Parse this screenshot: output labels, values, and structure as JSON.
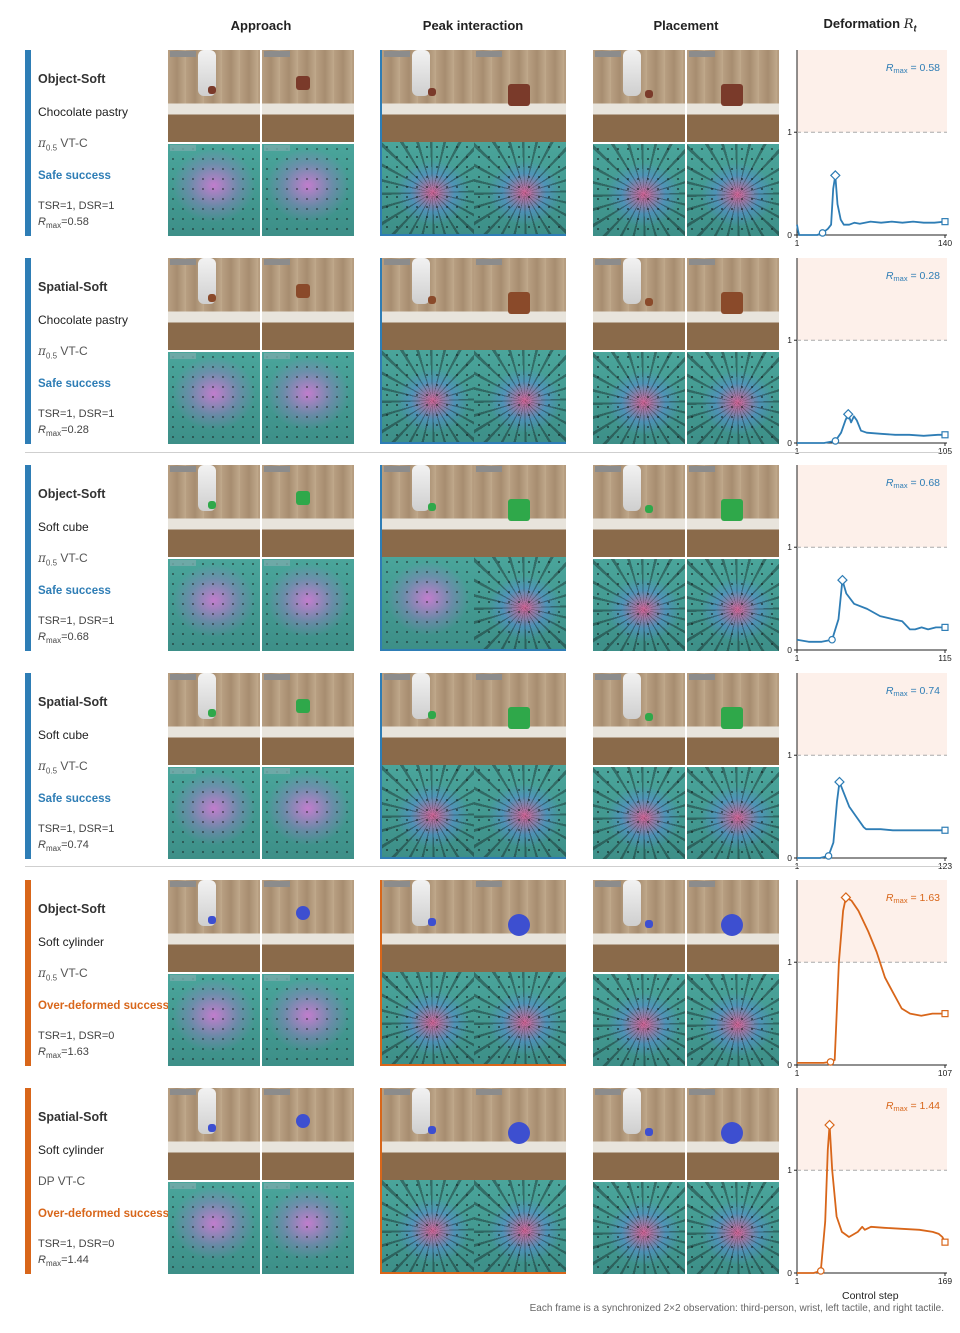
{
  "headers": {
    "approach": "Approach",
    "peak": "Peak interaction",
    "placement": "Placement",
    "deformation": "Deformation",
    "deformation_symbol": "R",
    "deformation_subscript": "t"
  },
  "colors": {
    "safe": "#2e7db5",
    "over": "#d8661a",
    "shade": "#fdf0ea",
    "threshold": "#aaaaaa"
  },
  "rows": [
    {
      "task": "Object-Soft",
      "object": "Chocolate pastry",
      "policy_base": "π",
      "policy_sub": "0.5",
      "policy_rest": " VT-C",
      "outcome": "Safe success",
      "outcome_type": "safe",
      "metrics": "TSR=1, DSR=1",
      "rmax_label": "R",
      "rmax_sub": "max",
      "rmax_value": "=0.58",
      "rmax_annot": "= 0.58"
    },
    {
      "task": "Spatial-Soft",
      "object": "Chocolate pastry",
      "policy_base": "π",
      "policy_sub": "0.5",
      "policy_rest": " VT-C",
      "outcome": "Safe success",
      "outcome_type": "safe",
      "metrics": "TSR=1, DSR=1",
      "rmax_label": "R",
      "rmax_sub": "max",
      "rmax_value": "=0.28",
      "rmax_annot": "= 0.28"
    },
    {
      "task": "Object-Soft",
      "object": "Soft cube",
      "policy_base": "π",
      "policy_sub": "0.5",
      "policy_rest": " VT-C",
      "outcome": "Safe success",
      "outcome_type": "safe",
      "metrics": "TSR=1, DSR=1",
      "rmax_label": "R",
      "rmax_sub": "max",
      "rmax_value": "=0.68",
      "rmax_annot": "= 0.68"
    },
    {
      "task": "Spatial-Soft",
      "object": "Soft cube",
      "policy_base": "π",
      "policy_sub": "0.5",
      "policy_rest": " VT-C",
      "outcome": "Safe success",
      "outcome_type": "safe",
      "metrics": "TSR=1, DSR=1",
      "rmax_label": "R",
      "rmax_sub": "max",
      "rmax_value": "=0.74",
      "rmax_annot": "= 0.74"
    },
    {
      "task": "Object-Soft",
      "object": "Soft cylinder",
      "policy_base": "π",
      "policy_sub": "0.5",
      "policy_rest": " VT-C",
      "outcome": "Over-deformed success",
      "outcome_type": "over",
      "metrics": "TSR=1, DSR=0",
      "rmax_label": "R",
      "rmax_sub": "max",
      "rmax_value": "=1.63",
      "rmax_annot": "= 1.63"
    },
    {
      "task": "Spatial-Soft",
      "object": "Soft cylinder",
      "policy_base": "DP VT-C",
      "policy_sub": "",
      "policy_rest": "",
      "outcome": "Over-deformed success",
      "outcome_type": "over",
      "metrics": "TSR=1, DSR=0",
      "rmax_label": "R",
      "rmax_sub": "max",
      "rmax_value": "=1.44",
      "rmax_annot": "= 1.44"
    }
  ],
  "chart_data": [
    {
      "type": "line",
      "x_start": 1,
      "x_end": 140,
      "ylim": [
        0,
        1.8
      ],
      "threshold": 1,
      "yticks": [
        0,
        1
      ],
      "xticks": [
        "1",
        "140"
      ],
      "series": [
        {
          "values": [
            [
              1,
              0.1
            ],
            [
              2,
              0.04
            ],
            [
              3,
              0
            ],
            [
              15,
              0
            ],
            [
              20,
              0
            ],
            [
              25,
              0.02
            ],
            [
              30,
              0.06
            ],
            [
              33,
              0.1
            ],
            [
              35,
              0.45
            ],
            [
              37,
              0.58
            ],
            [
              39,
              0.3
            ],
            [
              42,
              0.15
            ],
            [
              45,
              0.1
            ],
            [
              50,
              0.1
            ],
            [
              55,
              0.12
            ],
            [
              60,
              0.11
            ],
            [
              70,
              0.13
            ],
            [
              80,
              0.12
            ],
            [
              90,
              0.13
            ],
            [
              100,
              0.12
            ],
            [
              110,
              0.13
            ],
            [
              120,
              0.12
            ],
            [
              130,
              0.12
            ],
            [
              140,
              0.13
            ]
          ]
        }
      ],
      "markers": [
        {
          "x": 25,
          "y": 0.02,
          "shape": "circle"
        },
        {
          "x": 37,
          "y": 0.58,
          "shape": "diamond"
        },
        {
          "x": 140,
          "y": 0.13,
          "shape": "square"
        }
      ]
    },
    {
      "type": "line",
      "x_start": 1,
      "x_end": 105,
      "ylim": [
        0,
        1.8
      ],
      "threshold": 1,
      "yticks": [
        0,
        1
      ],
      "xticks": [
        "1",
        "105"
      ],
      "series": [
        {
          "values": [
            [
              1,
              0
            ],
            [
              20,
              0
            ],
            [
              28,
              0.02
            ],
            [
              32,
              0.1
            ],
            [
              35,
              0.22
            ],
            [
              37,
              0.28
            ],
            [
              39,
              0.2
            ],
            [
              41,
              0.26
            ],
            [
              43,
              0.22
            ],
            [
              46,
              0.12
            ],
            [
              50,
              0.1
            ],
            [
              60,
              0.09
            ],
            [
              70,
              0.08
            ],
            [
              80,
              0.08
            ],
            [
              90,
              0.07
            ],
            [
              100,
              0.08
            ],
            [
              105,
              0.08
            ]
          ]
        }
      ],
      "markers": [
        {
          "x": 28,
          "y": 0.02,
          "shape": "circle"
        },
        {
          "x": 37,
          "y": 0.28,
          "shape": "diamond"
        },
        {
          "x": 105,
          "y": 0.08,
          "shape": "square"
        }
      ]
    },
    {
      "type": "line",
      "x_start": 1,
      "x_end": 115,
      "ylim": [
        0,
        1.8
      ],
      "threshold": 1,
      "yticks": [
        0,
        1
      ],
      "xticks": [
        "1",
        "115"
      ],
      "series": [
        {
          "values": [
            [
              1,
              0.1
            ],
            [
              10,
              0.08
            ],
            [
              20,
              0.08
            ],
            [
              28,
              0.1
            ],
            [
              33,
              0.3
            ],
            [
              36,
              0.68
            ],
            [
              39,
              0.55
            ],
            [
              45,
              0.45
            ],
            [
              55,
              0.4
            ],
            [
              65,
              0.33
            ],
            [
              75,
              0.3
            ],
            [
              82,
              0.28
            ],
            [
              88,
              0.2
            ],
            [
              92,
              0.2
            ],
            [
              97,
              0.22
            ],
            [
              102,
              0.2
            ],
            [
              108,
              0.22
            ],
            [
              115,
              0.22
            ]
          ]
        }
      ],
      "markers": [
        {
          "x": 28,
          "y": 0.1,
          "shape": "circle"
        },
        {
          "x": 36,
          "y": 0.68,
          "shape": "diamond"
        },
        {
          "x": 115,
          "y": 0.22,
          "shape": "square"
        }
      ]
    },
    {
      "type": "line",
      "x_start": 1,
      "x_end": 123,
      "ylim": [
        0,
        1.8
      ],
      "threshold": 1,
      "yticks": [
        0,
        1
      ],
      "xticks": [
        "1",
        "123"
      ],
      "series": [
        {
          "values": [
            [
              1,
              0
            ],
            [
              20,
              0
            ],
            [
              27,
              0.02
            ],
            [
              31,
              0.15
            ],
            [
              34,
              0.55
            ],
            [
              36,
              0.74
            ],
            [
              39,
              0.65
            ],
            [
              44,
              0.5
            ],
            [
              50,
              0.4
            ],
            [
              56,
              0.3
            ],
            [
              58,
              0.28
            ],
            [
              70,
              0.28
            ],
            [
              80,
              0.27
            ],
            [
              90,
              0.27
            ],
            [
              100,
              0.27
            ],
            [
              110,
              0.27
            ],
            [
              123,
              0.27
            ]
          ]
        }
      ],
      "markers": [
        {
          "x": 27,
          "y": 0.02,
          "shape": "circle"
        },
        {
          "x": 36,
          "y": 0.74,
          "shape": "diamond"
        },
        {
          "x": 123,
          "y": 0.27,
          "shape": "square"
        }
      ]
    },
    {
      "type": "line",
      "x_start": 1,
      "x_end": 107,
      "ylim": [
        0,
        1.8
      ],
      "threshold": 1,
      "yticks": [
        0,
        1
      ],
      "xticks": [
        "1",
        "107"
      ],
      "series": [
        {
          "values": [
            [
              1,
              0.02
            ],
            [
              20,
              0.02
            ],
            [
              25,
              0.03
            ],
            [
              28,
              0.05
            ],
            [
              31,
              1.0
            ],
            [
              34,
              1.5
            ],
            [
              36,
              1.63
            ],
            [
              40,
              1.6
            ],
            [
              45,
              1.5
            ],
            [
              52,
              1.3
            ],
            [
              58,
              1.1
            ],
            [
              64,
              0.85
            ],
            [
              70,
              0.7
            ],
            [
              76,
              0.55
            ],
            [
              82,
              0.5
            ],
            [
              90,
              0.48
            ],
            [
              98,
              0.5
            ],
            [
              107,
              0.5
            ]
          ]
        }
      ],
      "markers": [
        {
          "x": 25,
          "y": 0.03,
          "shape": "circle"
        },
        {
          "x": 36,
          "y": 1.63,
          "shape": "diamond"
        },
        {
          "x": 107,
          "y": 0.5,
          "shape": "square"
        }
      ]
    },
    {
      "type": "line",
      "x_start": 1,
      "x_end": 169,
      "ylim": [
        0,
        1.8
      ],
      "threshold": 1,
      "yticks": [
        0,
        1
      ],
      "xticks": [
        "1",
        "169"
      ],
      "series": [
        {
          "values": [
            [
              1,
              0
            ],
            [
              20,
              0
            ],
            [
              28,
              0.02
            ],
            [
              33,
              0.5
            ],
            [
              36,
              1.2
            ],
            [
              38,
              1.44
            ],
            [
              41,
              1.0
            ],
            [
              46,
              0.55
            ],
            [
              52,
              0.4
            ],
            [
              60,
              0.35
            ],
            [
              70,
              0.4
            ],
            [
              75,
              0.45
            ],
            [
              78,
              0.42
            ],
            [
              85,
              0.45
            ],
            [
              100,
              0.44
            ],
            [
              120,
              0.43
            ],
            [
              140,
              0.42
            ],
            [
              155,
              0.4
            ],
            [
              162,
              0.38
            ],
            [
              166,
              0.35
            ],
            [
              169,
              0.3
            ]
          ]
        }
      ],
      "markers": [
        {
          "x": 28,
          "y": 0.02,
          "shape": "circle"
        },
        {
          "x": 38,
          "y": 1.44,
          "shape": "diamond"
        },
        {
          "x": 169,
          "y": 0.3,
          "shape": "square"
        }
      ]
    }
  ],
  "xlabel": "Control step",
  "caption": "Each frame is a synchronized 2×2 observation: third-person, wrist, left tactile, and right tactile."
}
